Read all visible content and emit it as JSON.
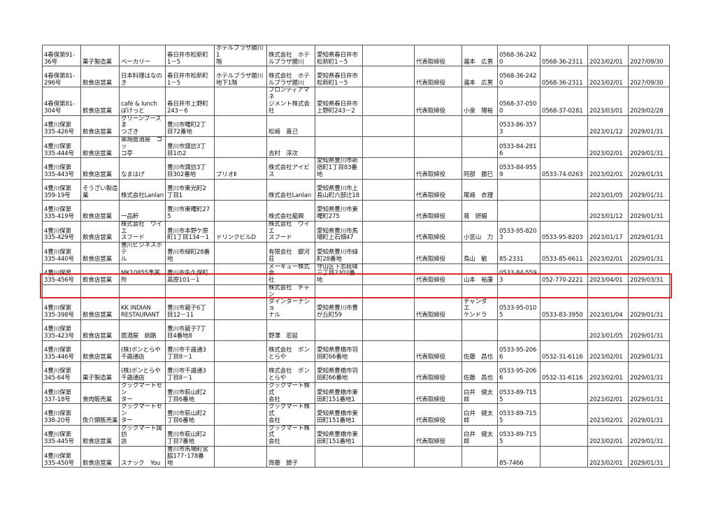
{
  "highlight_color": "#d42a2a",
  "highlighted_row": 11,
  "rows": [
    [
      "4春保第91-\n36号",
      "菓子製造業",
      "ベーカリー",
      "春日井市松新町\n1－5",
      "ホテルプラザ勝川1\n階",
      "株式会社　ホテ\nルプラザ勝川",
      "愛知県春日井市\n松新町1－5",
      "",
      "代表取締役",
      "瀧本　広男",
      "0568-36-2420",
      "0568-36-2311",
      "2023/02/01",
      "2027/09/30"
    ],
    [
      "4春保第81-\n296号",
      "飲食店営業",
      "日本料理はなの\nき",
      "春日井市松新町\n1－5",
      "ホテルプラザ勝川\n地下1階",
      "株式会社　ホテ\nルプラザ勝川",
      "愛知県春日井市\n松新町1－5",
      "",
      "代表取締役",
      "瀧本　広男",
      "0568-36-2420",
      "0568-36-2311",
      "2023/02/01",
      "2027/09/30"
    ],
    [
      "4春保第81-\n304号",
      "飲食店営業",
      "café & lunch\nぽけっと",
      "春日井市上野町\n243－6",
      "",
      "フロンティアマネ\nジメント株式会社",
      "愛知県春日井市\n上野町243－2",
      "",
      "代表取締役",
      "小泉　陽裕",
      "0568-37-0500",
      "0568-37-0281",
      "2023/03/01",
      "2029/02/28"
    ],
    [
      "4豊川保第\n335-426号",
      "飲食店営業",
      "グリーンフーズま\nつざき",
      "豊川市曙町2丁\n目72番地",
      "",
      "松崎　直己",
      "",
      "",
      "",
      "",
      "0533-86-3573",
      "",
      "2023/01/12",
      "2029/01/31"
    ],
    [
      "4豊川保第\n335-444号",
      "飲食店営業",
      "串焼居酒屋　コッ\nコ亭",
      "豊川市諏訪3丁\n目1の2",
      "",
      "吉村　淳次",
      "",
      "",
      "",
      "",
      "0533-84-2816",
      "",
      "2023/02/01",
      "2029/01/31"
    ],
    [
      "4豊川保第\n335-443号",
      "飲食店営業",
      "なまはげ",
      "豊川市諏訪3丁\n目302番地",
      "プリオⅡ",
      "株式会社アイビ\nス",
      "愛知県豊川市新\n宿町1丁目83番\n地",
      "",
      "代表取締役",
      "阿部　勝巳",
      "0533-84-9559",
      "0533-74-0263",
      "2023/02/01",
      "2029/01/31"
    ],
    [
      "4豊川保第\n359-19号",
      "そうざい製造\n業",
      "株式会社Lanlan",
      "豊川市東光町2\n丁目1",
      "",
      "株式会社Lanlan",
      "愛知県豊川市上\n長山町六部辻18",
      "",
      "代表取締役",
      "尾崎　衣理",
      "",
      "",
      "2023/01/05",
      "2029/01/31"
    ],
    [
      "4豊川保第\n335-419号",
      "飲食店営業",
      "一品軒",
      "豊川市東曙町27\n5",
      "",
      "株式会社龍興",
      "愛知県豊川市東\n曙町275",
      "",
      "代表取締役",
      "蒋　妍媚",
      "",
      "",
      "2023/01/12",
      "2029/01/31"
    ],
    [
      "4豊川保第\n335-429号",
      "飲食店営業",
      "株式会社　ワイエ\nスフード",
      "豊川市本野ケ原\n町1丁目134－1",
      "ドリンクビルD",
      "株式会社　ワイエ\nスフード",
      "愛知県豊川市馬\n場町上石畑47",
      "",
      "代表取締役",
      "小宮山　力",
      "0533-95-8203",
      "0533-95-8203",
      "2023/01/17",
      "2029/01/31"
    ],
    [
      "4豊川保第\n335-440号",
      "飲食店営業",
      "豊川ビジネスホテ\nル",
      "豊川市緑町28番\n地",
      "",
      "有限会社　銀河\n荘",
      "愛知県豊川市緑\n町28番地",
      "",
      "代表取締役",
      "鳥山　敏",
      "85-2331",
      "0533-85-6611",
      "2023/02/01",
      "2029/01/31"
    ],
    [
      "4豊川保第\n335-456号",
      "飲食店営業",
      "MK10855事業\n所",
      "豊川市牛久保町\n高原101－1",
      "",
      "メーキュー株式会\n社",
      "守山区下志段味\n三丁目2302番\n地",
      "",
      "代表取締役",
      "山本　裕康",
      "0533-84-5593",
      "052-770-2221",
      "2023/04/01",
      "2029/03/31"
    ],
    [
      "4豊川保第\n335-398号",
      "飲食店営業",
      "KK INDIAN\nRESTAURANT",
      "豊川市蔵子6丁\n目12－11",
      "",
      "株式会社　チャン\nダインターナショ\nナル",
      "愛知県豊川市豊\nが丘町59",
      "",
      "代表取締役",
      "チャンダ　エ\nケンドラ",
      "0533-95-0105",
      "0533-83-3950",
      "2023/01/04",
      "2029/01/31"
    ],
    [
      "4豊川保第\n335-423号",
      "飲食店営業",
      "居酒屋　釧路",
      "豊川市蔵子7丁\n目4番地8",
      "",
      "野澤　宏延",
      "",
      "",
      "",
      "",
      "",
      "",
      "2023/01/05",
      "2029/01/31"
    ],
    [
      "4豊川保第\n335-446号",
      "飲食店営業",
      "(株)ポンとらや\n千歳通店",
      "豊川市千歳通3\n丁目8－1",
      "",
      "株式会社　ポン\nとらや",
      "愛知県豊橋市羽\n田町66番地",
      "",
      "代表取締役",
      "佐藤　昌也",
      "0533-95-2066",
      "0532-31-6116",
      "2023/02/01",
      "2029/01/31"
    ],
    [
      "4豊川保第\n345-64号",
      "菓子製造業",
      "(株)ポンとらや\n千歳通店",
      "豊川市千歳通3\n丁目8－1",
      "",
      "株式会社　ポン\nとらや",
      "愛知県豊橋市羽\n田町66番地",
      "",
      "代表取締役",
      "佐藤　昌也",
      "0533-95-2066",
      "0532-31-6116",
      "2023/02/01",
      "2029/01/31"
    ],
    [
      "4豊川保第\n337-18号",
      "食肉販売業",
      "クックマートセン\nター",
      "豊川市萩山町2\n丁目6番地",
      "",
      "クックマート株式\n会社",
      "愛知県豊橋市東\n田町151番地1",
      "",
      "代表取締役",
      "白井　健太\n郎",
      "0533-89-7155",
      "",
      "2023/02/01",
      "2029/01/31"
    ],
    [
      "4豊川保第\n338-20号",
      "魚介類販売業",
      "クックマートセン\nター",
      "豊川市萩山町2\n丁目6番地",
      "",
      "クックマート株式\n会社",
      "愛知県豊橋市東\n田町151番地1",
      "",
      "代表取締役",
      "白井　健太\n郎",
      "0533-89-7155",
      "",
      "2023/02/01",
      "2029/01/31"
    ],
    [
      "4豊川保第\n335-445号",
      "飲食店営業",
      "クックマート諏訪\n店",
      "豊川市萩山町2\n丁目7番地",
      "",
      "クックマート株式\n会社",
      "愛知県豊橋市東\n田町151番地1",
      "",
      "代表取締役",
      "白井　健太\n郎",
      "0533-89-7155",
      "",
      "2023/02/01",
      "2029/01/31"
    ],
    [
      "4豊川保第\n335-450号",
      "飲食店営業",
      "スナック　You",
      "豊川市馬場町宮\n脇177･178番\n地",
      "",
      "齊藤　節子",
      "",
      "",
      "",
      "",
      "85-7466",
      "",
      "2023/02/01",
      "2029/01/31"
    ]
  ]
}
